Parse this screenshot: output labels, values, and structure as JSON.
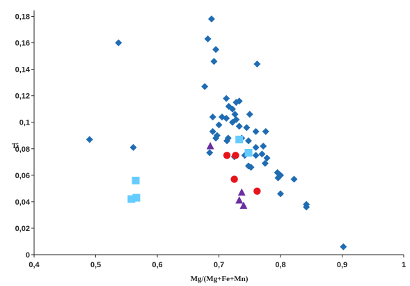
{
  "chart_data": {
    "type": "scatter",
    "title": "",
    "xlabel": "Mg/(Mg+Fe+Mn)",
    "ylabel": "Ti",
    "xlim": [
      0.4,
      1.0
    ],
    "ylim": [
      0,
      0.19
    ],
    "grid": false,
    "legend": "none",
    "x_ticks": [
      "0,4",
      "0,5",
      "0,6",
      "0,7",
      "0,8",
      "0,9",
      "1"
    ],
    "x_tick_values": [
      0.4,
      0.5,
      0.6,
      0.7,
      0.8,
      0.9,
      1.0
    ],
    "y_ticks": [
      "0",
      "0,02",
      "0,04",
      "0,06",
      "0,08",
      "0,1",
      "0,12",
      "0,14",
      "0,16",
      "0,18"
    ],
    "y_tick_values": [
      0,
      0.02,
      0.04,
      0.06,
      0.08,
      0.1,
      0.12,
      0.14,
      0.16,
      0.18
    ],
    "series": [
      {
        "marker": "diamond",
        "color": "#1f6cb3",
        "points": [
          [
            0.49,
            0.087
          ],
          [
            0.537,
            0.16
          ],
          [
            0.561,
            0.081
          ],
          [
            0.682,
            0.163
          ],
          [
            0.688,
            0.178
          ],
          [
            0.695,
            0.155
          ],
          [
            0.692,
            0.146
          ],
          [
            0.762,
            0.144
          ],
          [
            0.677,
            0.127
          ],
          [
            0.712,
            0.118
          ],
          [
            0.722,
            0.11
          ],
          [
            0.728,
            0.115
          ],
          [
            0.733,
            0.116
          ],
          [
            0.716,
            0.112
          ],
          [
            0.726,
            0.106
          ],
          [
            0.705,
            0.104
          ],
          [
            0.712,
            0.103
          ],
          [
            0.69,
            0.104
          ],
          [
            0.7,
            0.098
          ],
          [
            0.733,
            0.097
          ],
          [
            0.75,
            0.106
          ],
          [
            0.728,
            0.102
          ],
          [
            0.722,
            0.1
          ],
          [
            0.745,
            0.096
          ],
          [
            0.76,
            0.093
          ],
          [
            0.69,
            0.093
          ],
          [
            0.697,
            0.09
          ],
          [
            0.715,
            0.088
          ],
          [
            0.737,
            0.088
          ],
          [
            0.748,
            0.086
          ],
          [
            0.76,
            0.081
          ],
          [
            0.776,
            0.093
          ],
          [
            0.772,
            0.082
          ],
          [
            0.778,
            0.073
          ],
          [
            0.775,
            0.069
          ],
          [
            0.77,
            0.076
          ],
          [
            0.742,
            0.075
          ],
          [
            0.685,
            0.077
          ],
          [
            0.713,
            0.086
          ],
          [
            0.695,
            0.088
          ],
          [
            0.725,
            0.074
          ],
          [
            0.76,
            0.075
          ],
          [
            0.748,
            0.067
          ],
          [
            0.752,
            0.066
          ],
          [
            0.795,
            0.062
          ],
          [
            0.8,
            0.06
          ],
          [
            0.796,
            0.058
          ],
          [
            0.822,
            0.057
          ],
          [
            0.8,
            0.046
          ],
          [
            0.842,
            0.038
          ],
          [
            0.842,
            0.036
          ],
          [
            0.902,
            0.006
          ]
        ]
      },
      {
        "marker": "square",
        "color": "#66ccff",
        "points": [
          [
            0.565,
            0.056
          ],
          [
            0.558,
            0.042
          ],
          [
            0.566,
            0.043
          ],
          [
            0.733,
            0.087
          ],
          [
            0.748,
            0.077
          ]
        ]
      },
      {
        "marker": "triangle",
        "color": "#6a2ea0",
        "points": [
          [
            0.686,
            0.082
          ],
          [
            0.737,
            0.047
          ],
          [
            0.733,
            0.041
          ],
          [
            0.74,
            0.037
          ]
        ]
      },
      {
        "marker": "circle",
        "color": "#e8141c",
        "points": [
          [
            0.713,
            0.075
          ],
          [
            0.727,
            0.075
          ],
          [
            0.725,
            0.057
          ],
          [
            0.762,
            0.048
          ]
        ]
      }
    ]
  }
}
